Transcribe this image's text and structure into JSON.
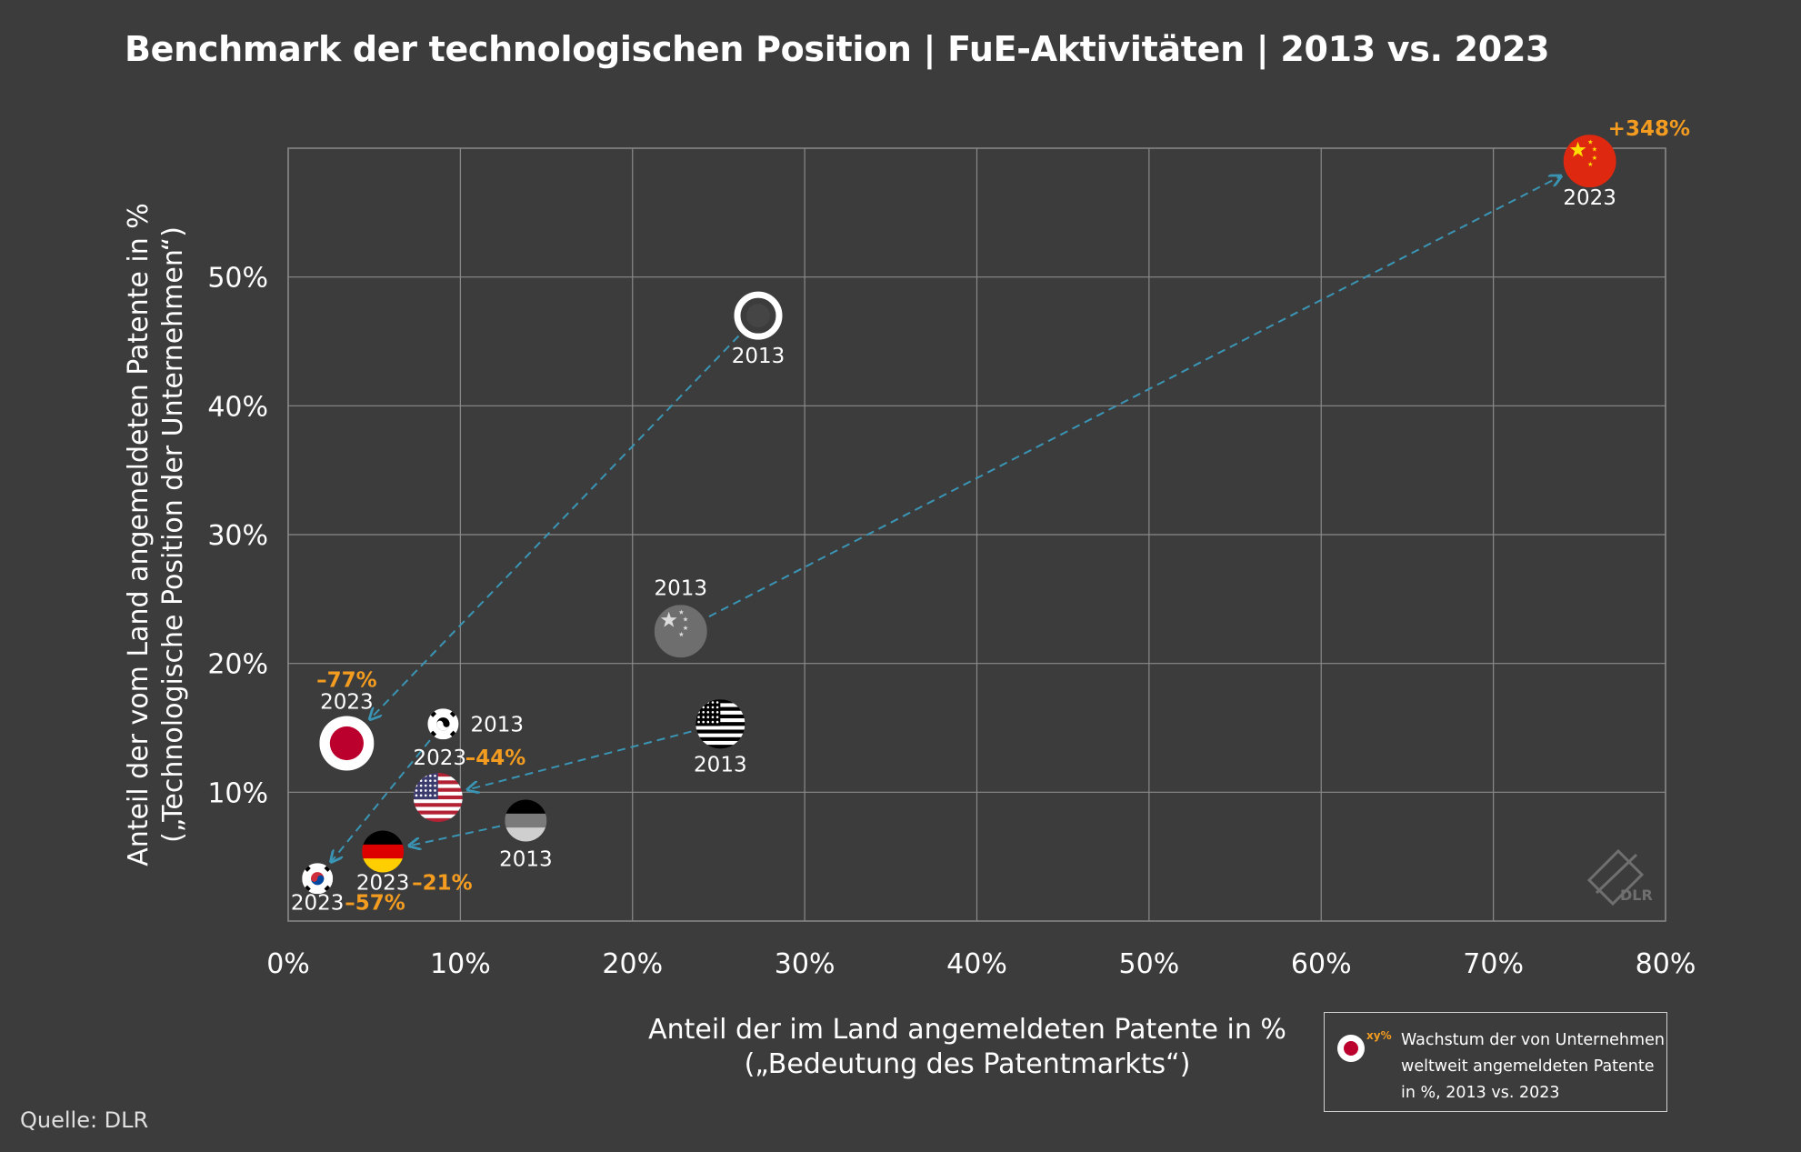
{
  "title": "Benchmark der technologischen Position | FuE-Aktivitäten | 2013 vs. 2023",
  "source": "Quelle: DLR",
  "logo": "DLR",
  "legend": {
    "marker_sup": "xy%",
    "text": "Wachstum der von Unternehmen weltweit angemeldeten Patente in %, 2013 vs. 2023"
  },
  "colors": {
    "background": "#3c3c3c",
    "grid": "#8a8a8a",
    "arrow": "#3a95b5",
    "growth_label": "#f39c1f",
    "text": "#ffffff"
  },
  "chart_data": {
    "type": "scatter",
    "title": "Benchmark der technologischen Position | FuE-Aktivitäten | 2013 vs. 2023",
    "xlabel": [
      "Anteil der im Land angemeldeten Patente in %",
      "(„Bedeutung des Patentmarkts“)"
    ],
    "ylabel": [
      "Anteil der vom Land angemeldeten Patente in %",
      "(„Technologische Position der Unternehmen“)"
    ],
    "xlim": [
      0,
      80
    ],
    "ylim": [
      0,
      60
    ],
    "xticks": [
      0,
      10,
      20,
      30,
      40,
      50,
      60,
      70,
      80
    ],
    "xtick_labels": [
      "0%",
      "10%",
      "20%",
      "30%",
      "40%",
      "50%",
      "60%",
      "70%",
      "80%"
    ],
    "yticks": [
      10,
      20,
      30,
      40,
      50
    ],
    "ytick_labels": [
      "10%",
      "20%",
      "30%",
      "40%",
      "50%"
    ],
    "grid": true,
    "icons": [
      "japan-flag",
      "china-flag",
      "usa-flag",
      "germany-flag",
      "korea-flag"
    ],
    "series": [
      {
        "country": "japan",
        "icon": "japan-flag",
        "p2013": {
          "x": 27.3,
          "y": 47.0,
          "label": "2013"
        },
        "p2023": {
          "x": 3.4,
          "y": 13.8,
          "label": "2023"
        },
        "growth": "–77%"
      },
      {
        "country": "china",
        "icon": "china-flag",
        "p2013": {
          "x": 22.8,
          "y": 22.5,
          "label": "2013"
        },
        "p2023": {
          "x": 75.6,
          "y": 59.0,
          "label": "2023"
        },
        "growth": "+348%"
      },
      {
        "country": "usa",
        "icon": "usa-flag",
        "p2013": {
          "x": 25.1,
          "y": 15.3,
          "label": "2013"
        },
        "p2023": {
          "x": 8.7,
          "y": 9.6,
          "label": "2023"
        },
        "growth": "–44%"
      },
      {
        "country": "germany",
        "icon": "germany-flag",
        "p2013": {
          "x": 13.8,
          "y": 7.8,
          "label": "2013"
        },
        "p2023": {
          "x": 5.5,
          "y": 5.4,
          "label": "2023"
        },
        "growth": "–21%"
      },
      {
        "country": "korea",
        "icon": "korea-flag",
        "p2013": {
          "x": 9.0,
          "y": 15.3,
          "label": "2013"
        },
        "p2023": {
          "x": 1.7,
          "y": 3.3,
          "label": "2023"
        },
        "growth": "–57%"
      }
    ]
  }
}
